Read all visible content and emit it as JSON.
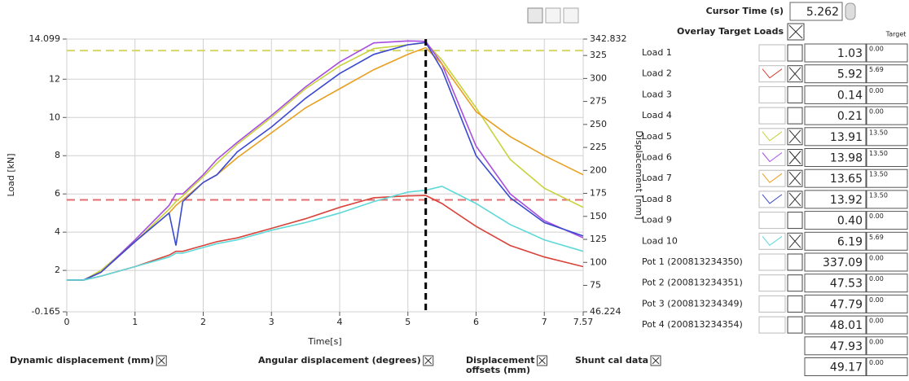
{
  "chart_data": {
    "type": "line",
    "xlabel": "Time[s]",
    "ylabel": "Load [kN]",
    "y2label": "Displacement [mm]",
    "x": [
      0,
      0.25,
      0.5,
      1,
      1.5,
      1.6,
      1.7,
      2,
      2.2,
      2.5,
      3,
      3.5,
      4,
      4.5,
      5,
      5.262,
      5.5,
      6,
      6.5,
      7,
      7.57
    ],
    "series": [
      {
        "color": "#d8433a",
        "values": [
          1.5,
          1.5,
          1.7,
          2.2,
          2.8,
          3.0,
          3.0,
          3.3,
          3.5,
          3.7,
          4.2,
          4.7,
          5.3,
          5.8,
          5.9,
          5.92,
          5.5,
          4.3,
          3.3,
          2.7,
          2.2
        ]
      },
      {
        "color": "#c8d23c",
        "values": [
          1.5,
          1.5,
          2.0,
          3.5,
          5.2,
          5.6,
          5.9,
          6.9,
          7.6,
          8.6,
          10.0,
          11.5,
          12.7,
          13.6,
          13.8,
          13.91,
          13.0,
          10.5,
          7.8,
          6.3,
          5.3
        ]
      },
      {
        "color": "#a64de0",
        "values": [
          1.5,
          1.5,
          1.9,
          3.6,
          5.4,
          6.0,
          6.0,
          7.0,
          7.8,
          8.7,
          10.1,
          11.6,
          12.9,
          13.9,
          14.0,
          13.98,
          12.8,
          8.5,
          6.0,
          4.6,
          3.7
        ]
      },
      {
        "color": "#e8a020",
        "values": [
          1.5,
          1.5,
          1.9,
          3.5,
          5.0,
          5.4,
          5.7,
          6.6,
          7.0,
          7.9,
          9.2,
          10.5,
          11.5,
          12.5,
          13.3,
          13.65,
          12.8,
          10.3,
          9.0,
          8.0,
          7.0
        ]
      },
      {
        "color": "#3a4ad0",
        "values": [
          1.5,
          1.5,
          1.9,
          3.5,
          5.0,
          3.3,
          5.6,
          6.6,
          7.0,
          8.2,
          9.5,
          11.0,
          12.3,
          13.3,
          13.8,
          13.92,
          12.5,
          8.0,
          5.8,
          4.5,
          3.8
        ]
      },
      {
        "color": "#5fd8d8",
        "values": [
          1.5,
          1.5,
          1.7,
          2.2,
          2.7,
          2.9,
          2.9,
          3.2,
          3.4,
          3.6,
          4.1,
          4.5,
          5.0,
          5.6,
          6.1,
          6.19,
          6.4,
          5.5,
          4.4,
          3.6,
          3.0
        ]
      }
    ],
    "reference_lines": [
      {
        "value": 13.5,
        "color": "#d6d66a"
      },
      {
        "value": 5.69,
        "color": "#e07070"
      }
    ],
    "xlim": [
      0,
      7.57
    ],
    "xticks": [
      0,
      1,
      2,
      3,
      4,
      5,
      6,
      7,
      7.57
    ],
    "ylim": [
      -0.165,
      14.099
    ],
    "yticks": [
      -0.165,
      2,
      4,
      6,
      8,
      10,
      12,
      14.099
    ],
    "y2lim": [
      46.224,
      342.832
    ],
    "y2ticks": [
      46.224,
      75,
      100,
      125,
      150,
      175,
      200,
      225,
      250,
      275,
      300,
      325,
      342.832
    ],
    "grid": true
  },
  "cursor": {
    "label": "Cursor Time (s)",
    "value": 5.262
  },
  "overlay": {
    "label": "Overlay Target Loads",
    "checked": true,
    "target_header": "Target"
  },
  "channels": [
    {
      "name": "Load 1",
      "value": "1.03",
      "target": "0.00",
      "checked": false
    },
    {
      "name": "Load 2",
      "value": "5.92",
      "target": "5.69",
      "checked": true,
      "color": "#d8433a"
    },
    {
      "name": "Load 3",
      "value": "0.14",
      "target": "0.00",
      "checked": false
    },
    {
      "name": "Load 4",
      "value": "0.21",
      "target": "0.00",
      "checked": false
    },
    {
      "name": "Load 5",
      "value": "13.91",
      "target": "13.50",
      "checked": true,
      "color": "#c8d23c"
    },
    {
      "name": "Load 6",
      "value": "13.98",
      "target": "13.50",
      "checked": true,
      "color": "#a64de0"
    },
    {
      "name": "Load 7",
      "value": "13.65",
      "target": "13.50",
      "checked": true,
      "color": "#e8a020"
    },
    {
      "name": "Load 8",
      "value": "13.92",
      "target": "13.50",
      "checked": true,
      "color": "#3a4ad0"
    },
    {
      "name": "Load 9",
      "value": "0.40",
      "target": "0.00",
      "checked": false
    },
    {
      "name": "Load 10",
      "value": "6.19",
      "target": "5.69",
      "checked": true,
      "color": "#5fd8d8"
    },
    {
      "name": "Pot 1 (200813234350)",
      "value": "337.09",
      "target": "0.00",
      "checked": false
    },
    {
      "name": "Pot 2 (200813234351)",
      "value": "47.53",
      "target": "0.00",
      "checked": false
    },
    {
      "name": "Pot 3 (200813234349)",
      "value": "47.79",
      "target": "0.00",
      "checked": false
    },
    {
      "name": "Pot 4 (200813234354)",
      "value": "48.01",
      "target": "0.00",
      "checked": false
    },
    {
      "name": null,
      "value": "47.93",
      "target": "0.00",
      "checked": false
    },
    {
      "name": null,
      "value": "49.17",
      "target": "0.00",
      "checked": false
    }
  ],
  "options": [
    {
      "label": "Dynamic displacement (mm)",
      "checked": true
    },
    {
      "label": "Angular displacement (degrees)",
      "checked": true
    },
    {
      "label": "Displacement offsets (mm)",
      "checked": true
    },
    {
      "label": "Shunt cal data",
      "checked": true
    }
  ]
}
